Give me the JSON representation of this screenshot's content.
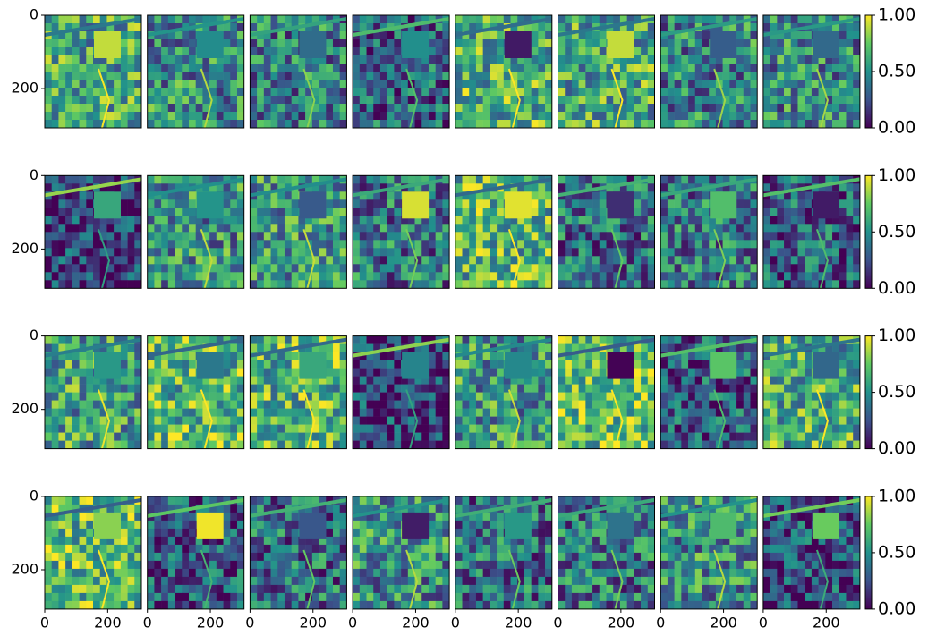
{
  "chart_data": [
    {
      "type": "image",
      "xlim": [
        0,
        307
      ],
      "ylim": [
        307,
        0
      ],
      "yticks": [
        0,
        200
      ]
    },
    {
      "type": "image",
      "xlim": [
        0,
        307
      ],
      "ylim": [
        307,
        0
      ]
    },
    {
      "type": "image",
      "xlim": [
        0,
        307
      ],
      "ylim": [
        307,
        0
      ]
    },
    {
      "type": "image",
      "xlim": [
        0,
        307
      ],
      "ylim": [
        307,
        0
      ]
    },
    {
      "type": "image",
      "xlim": [
        0,
        307
      ],
      "ylim": [
        307,
        0
      ]
    },
    {
      "type": "image",
      "xlim": [
        0,
        307
      ],
      "ylim": [
        307,
        0
      ]
    },
    {
      "type": "image",
      "xlim": [
        0,
        307
      ],
      "ylim": [
        307,
        0
      ]
    },
    {
      "type": "image",
      "xlim": [
        0,
        307
      ],
      "ylim": [
        307,
        0
      ]
    },
    {
      "type": "colorbar",
      "colors": [
        "#440154",
        "#3b528b",
        "#21918c",
        "#5ec962",
        "#fde725"
      ],
      "ylim": [
        0,
        1
      ],
      "yticks": [
        {
          "value": 0,
          "label": "0.00"
        },
        {
          "value": 0.5,
          "label": "0.50"
        },
        {
          "value": 1,
          "label": "1.00"
        }
      ]
    },
    {
      "type": "image",
      "xlim": [
        0,
        307
      ],
      "ylim": [
        307,
        0
      ],
      "yticks": [
        0,
        200
      ]
    },
    {
      "type": "image",
      "xlim": [
        0,
        307
      ],
      "ylim": [
        307,
        0
      ]
    },
    {
      "type": "image",
      "xlim": [
        0,
        307
      ],
      "ylim": [
        307,
        0
      ]
    },
    {
      "type": "image",
      "xlim": [
        0,
        307
      ],
      "ylim": [
        307,
        0
      ]
    },
    {
      "type": "image",
      "xlim": [
        0,
        307
      ],
      "ylim": [
        307,
        0
      ]
    },
    {
      "type": "image",
      "xlim": [
        0,
        307
      ],
      "ylim": [
        307,
        0
      ]
    },
    {
      "type": "image",
      "xlim": [
        0,
        307
      ],
      "ylim": [
        307,
        0
      ]
    },
    {
      "type": "image",
      "xlim": [
        0,
        307
      ],
      "ylim": [
        307,
        0
      ]
    },
    {
      "type": "colorbar",
      "colors": [
        "#440154",
        "#3b528b",
        "#21918c",
        "#5ec962",
        "#fde725"
      ],
      "ylim": [
        0,
        1
      ],
      "yticks": [
        {
          "value": 0,
          "label": "0.00"
        },
        {
          "value": 0.5,
          "label": "0.50"
        },
        {
          "value": 1,
          "label": "1.00"
        }
      ]
    },
    {
      "type": "image",
      "xlim": [
        0,
        307
      ],
      "ylim": [
        307,
        0
      ],
      "yticks": [
        0,
        200
      ]
    },
    {
      "type": "image",
      "xlim": [
        0,
        307
      ],
      "ylim": [
        307,
        0
      ]
    },
    {
      "type": "image",
      "xlim": [
        0,
        307
      ],
      "ylim": [
        307,
        0
      ]
    },
    {
      "type": "image",
      "xlim": [
        0,
        307
      ],
      "ylim": [
        307,
        0
      ]
    },
    {
      "type": "image",
      "xlim": [
        0,
        307
      ],
      "ylim": [
        307,
        0
      ]
    },
    {
      "type": "image",
      "xlim": [
        0,
        307
      ],
      "ylim": [
        307,
        0
      ]
    },
    {
      "type": "image",
      "xlim": [
        0,
        307
      ],
      "ylim": [
        307,
        0
      ]
    },
    {
      "type": "image",
      "xlim": [
        0,
        307
      ],
      "ylim": [
        307,
        0
      ]
    },
    {
      "type": "colorbar",
      "colors": [
        "#440154",
        "#3b528b",
        "#21918c",
        "#5ec962",
        "#fde725"
      ],
      "ylim": [
        0,
        1
      ],
      "yticks": [
        {
          "value": 0,
          "label": "0.00"
        },
        {
          "value": 0.5,
          "label": "0.50"
        },
        {
          "value": 1,
          "label": "1.00"
        }
      ]
    },
    {
      "type": "image",
      "xlim": [
        0,
        307
      ],
      "ylim": [
        307,
        0
      ],
      "yticks": [
        0,
        200
      ],
      "xticks": [
        0,
        200
      ]
    },
    {
      "type": "image",
      "xlim": [
        0,
        307
      ],
      "ylim": [
        307,
        0
      ],
      "xticks": [
        0,
        200
      ]
    },
    {
      "type": "image",
      "xlim": [
        0,
        307
      ],
      "ylim": [
        307,
        0
      ],
      "xticks": [
        0,
        200
      ]
    },
    {
      "type": "image",
      "xlim": [
        0,
        307
      ],
      "ylim": [
        307,
        0
      ],
      "xticks": [
        0,
        200
      ]
    },
    {
      "type": "image",
      "xlim": [
        0,
        307
      ],
      "ylim": [
        307,
        0
      ],
      "xticks": [
        0,
        200
      ]
    },
    {
      "type": "image",
      "xlim": [
        0,
        307
      ],
      "ylim": [
        307,
        0
      ],
      "xticks": [
        0,
        200
      ]
    },
    {
      "type": "image",
      "xlim": [
        0,
        307
      ],
      "ylim": [
        307,
        0
      ],
      "xticks": [
        0,
        200
      ]
    },
    {
      "type": "image",
      "xlim": [
        0,
        307
      ],
      "ylim": [
        307,
        0
      ],
      "xticks": [
        0,
        200
      ]
    },
    {
      "type": "colorbar",
      "colors": [
        "#440154",
        "#3b528b",
        "#21918c",
        "#5ec962",
        "#fde725"
      ],
      "ylim": [
        0,
        1
      ],
      "yticks": [
        {
          "value": 0,
          "label": "0.00"
        },
        {
          "value": 0.5,
          "label": "0.50"
        },
        {
          "value": 1,
          "label": "1.00"
        }
      ]
    }
  ]
}
